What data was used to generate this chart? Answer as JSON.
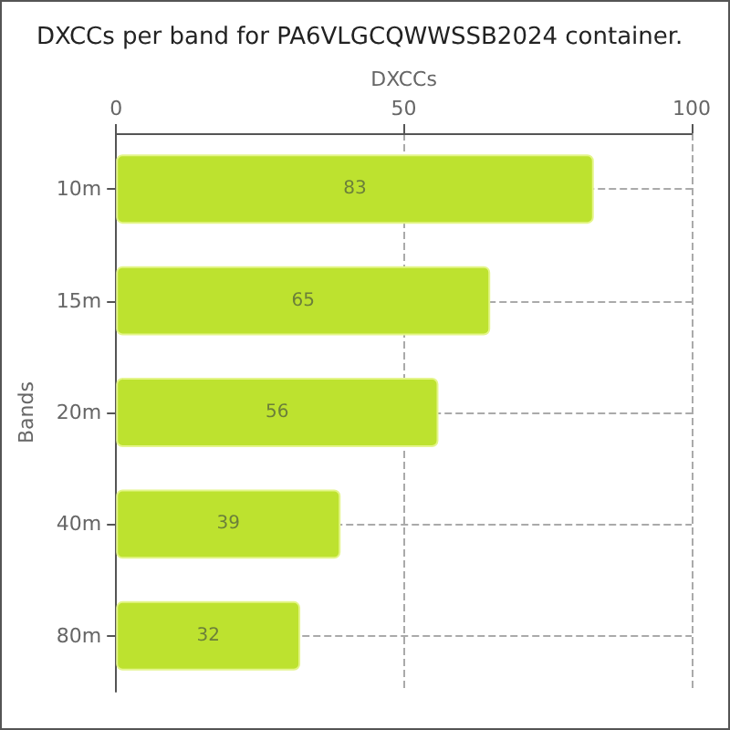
{
  "chart_data": {
    "type": "bar",
    "orientation": "horizontal",
    "title": "DXCCs per band for PA6VLGCQWWSSB2024 container.",
    "xlabel": "DXCCs",
    "ylabel": "Bands",
    "categories": [
      "10m",
      "15m",
      "20m",
      "40m",
      "80m"
    ],
    "values": [
      83,
      65,
      56,
      39,
      32
    ],
    "color": "#bde22f",
    "xlim": [
      0,
      100
    ],
    "xticks": [
      0,
      50,
      100
    ],
    "grid": true,
    "data_labels": true
  }
}
